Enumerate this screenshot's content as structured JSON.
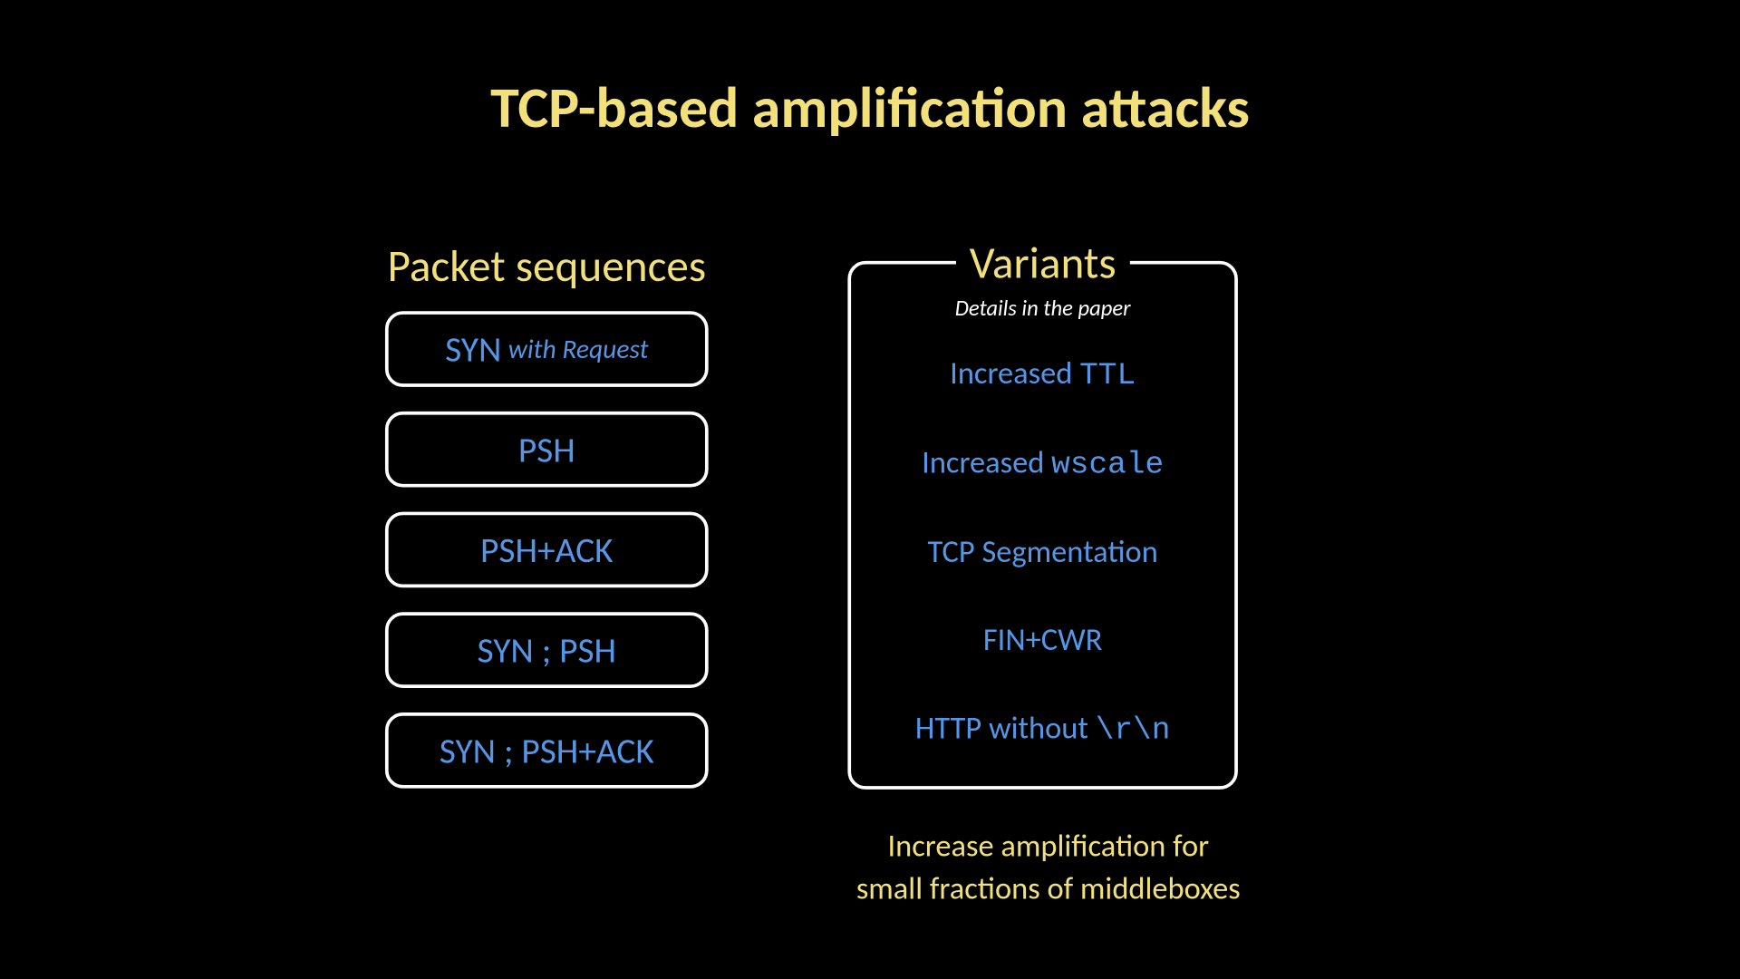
{
  "colors": {
    "background": "#000000",
    "yellow": "#f2e07b",
    "blue": "#5596e6",
    "white": "#ffffff",
    "border": "#ffffff"
  },
  "title": "TCP-based amplification attacks",
  "left": {
    "heading": "Packet sequences",
    "items": [
      {
        "main": "SYN",
        "sub": "with Request"
      },
      {
        "main": "PSH"
      },
      {
        "main": "PSH+ACK"
      },
      {
        "main": "SYN ; PSH"
      },
      {
        "main": "SYN ; PSH+ACK"
      }
    ]
  },
  "right": {
    "heading": "Variants",
    "subtitle": "Details in the paper",
    "items": [
      {
        "prefix": "Increased ",
        "mono": "TTL"
      },
      {
        "prefix": "Increased ",
        "mono": "wscale"
      },
      {
        "prefix": "TCP Segmentation"
      },
      {
        "prefix": "FIN+CWR"
      },
      {
        "prefix": "HTTP without ",
        "mono": "\\r\\n"
      }
    ]
  },
  "footer": {
    "line1": "Increase amplification for",
    "line2": "small fractions of middleboxes"
  }
}
